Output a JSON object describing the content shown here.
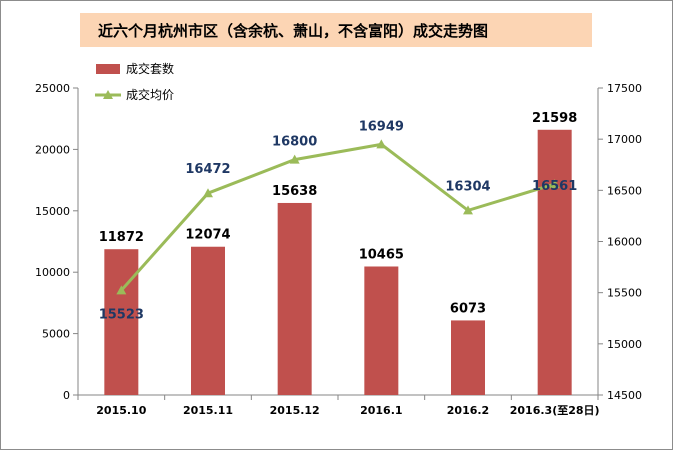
{
  "chart_data": {
    "type": "bar",
    "title": "近六个月杭州市区（含余杭、萧山，不含富阳）成交走势图",
    "categories": [
      "2015.10",
      "2015.11",
      "2015.12",
      "2016.1",
      "2016.2",
      "2016.3(至28日)"
    ],
    "series": [
      {
        "name": "成交套数",
        "type": "bar",
        "axis": "left",
        "color": "#c0504d",
        "values": [
          11872,
          12074,
          15638,
          10465,
          6073,
          21598
        ],
        "labels": [
          "11872",
          "12074",
          "15638",
          "10465",
          "6073",
          "21598"
        ]
      },
      {
        "name": "成交均价",
        "type": "line",
        "axis": "right",
        "color": "#9bbb59",
        "values": [
          15523,
          16472,
          16800,
          16949,
          16304,
          16561
        ],
        "labels": [
          "15523",
          "16472",
          "16800",
          "16949",
          "16304",
          "16561"
        ]
      }
    ],
    "y_left": {
      "min": 0,
      "max": 25000,
      "ticks": [
        "0",
        "5000",
        "10000",
        "15000",
        "20000",
        "25000"
      ],
      "tick_values": [
        0,
        5000,
        10000,
        15000,
        20000,
        25000
      ]
    },
    "y_right": {
      "min": 14500,
      "max": 17500,
      "ticks": [
        "14500",
        "15000",
        "15500",
        "16000",
        "16500",
        "17000",
        "17500"
      ],
      "tick_values": [
        14500,
        15000,
        15500,
        16000,
        16500,
        17000,
        17500
      ]
    },
    "grid": false,
    "legend_position": "top-left"
  }
}
